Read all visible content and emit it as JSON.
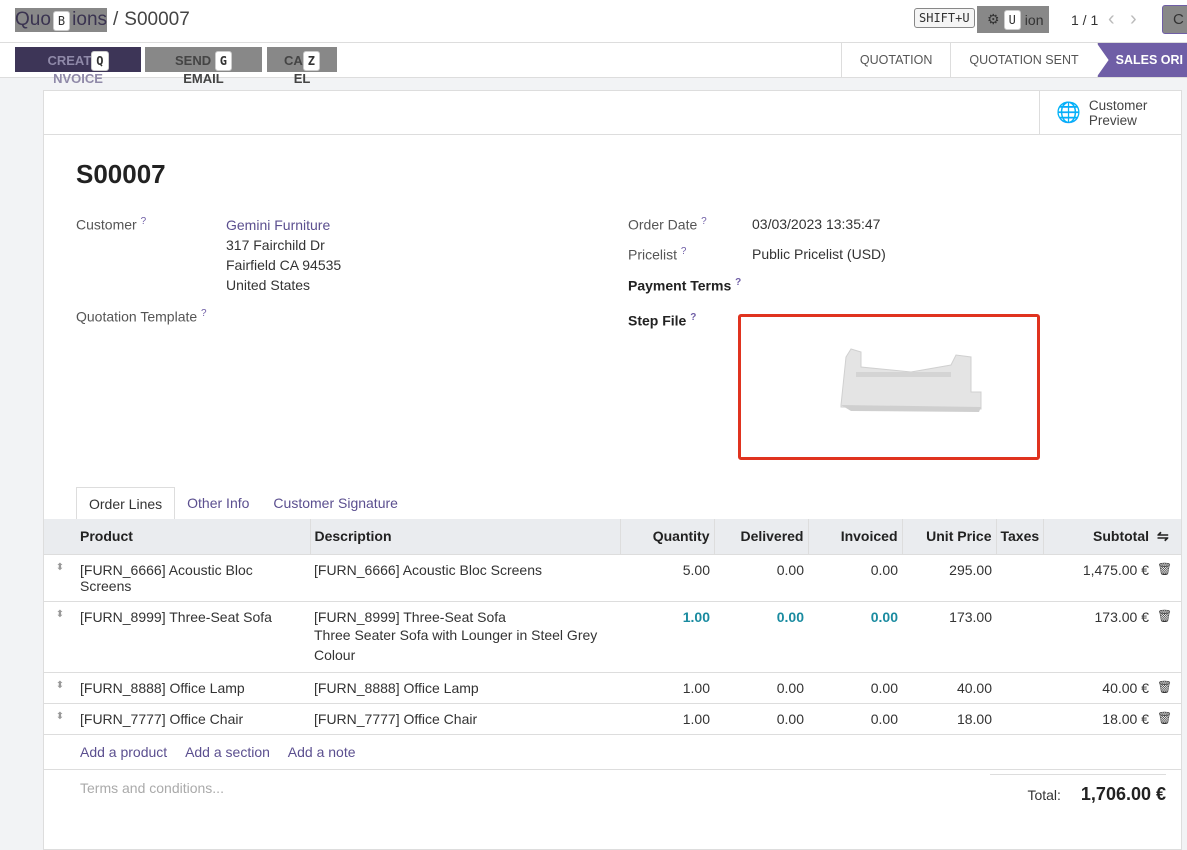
{
  "breadcrumb": {
    "parent_visible": "Quo",
    "parent_tail": "ions",
    "parent_hotkey": "B",
    "separator": "/",
    "current": "S00007"
  },
  "topbar": {
    "shift_hotkey": "SHIFT+U",
    "action_hotkey": "U",
    "action_tail": "ion",
    "pager": "1 / 1",
    "prev": "‹",
    "next": "›",
    "create_partial": "C"
  },
  "actions": {
    "create_invoice": {
      "left": "CREAT",
      "hotkey": "Q",
      "right": "NVOICE"
    },
    "send_email": {
      "left": "SEND",
      "hotkey": "G",
      "right": "EMAIL"
    },
    "cancel": {
      "left": "CA",
      "hotkey": "Z",
      "right": "EL"
    }
  },
  "status": [
    "QUOTATION",
    "QUOTATION SENT",
    "SALES ORI"
  ],
  "accent": "#6f5ea6",
  "preview": {
    "label1": "Customer",
    "label2": "Preview"
  },
  "order": {
    "name": "S00007",
    "customer_label": "Customer",
    "customer_name": "Gemini Furniture",
    "addr1": "317 Fairchild Dr",
    "addr2": "Fairfield CA 94535",
    "addr3": "United States",
    "template_label": "Quotation Template",
    "date_label": "Order Date",
    "date": "03/03/2023 13:35:47",
    "pricelist_label": "Pricelist",
    "pricelist": "Public Pricelist (USD)",
    "payment_label": "Payment Terms",
    "step_label": "Step File",
    "help": "?"
  },
  "tabs": [
    "Order Lines",
    "Other Info",
    "Customer Signature"
  ],
  "columns": [
    "Product",
    "Description",
    "Quantity",
    "Delivered",
    "Invoiced",
    "Unit Price",
    "Taxes",
    "Subtotal"
  ],
  "lines": [
    {
      "product": "[FURN_6666] Acoustic Bloc Screens",
      "desc": "[FURN_6666] Acoustic Bloc Screens",
      "desc2": "",
      "qty": "5.00",
      "del": "0.00",
      "inv": "0.00",
      "price": "295.00",
      "sub": "1,475.00 €"
    },
    {
      "product": "[FURN_8999] Three-Seat Sofa",
      "desc": "[FURN_8999] Three-Seat Sofa",
      "desc2": "Three Seater Sofa with Lounger in Steel Grey Colour",
      "qty": "1.00",
      "del": "0.00",
      "inv": "0.00",
      "price": "173.00",
      "sub": "173.00 €"
    },
    {
      "product": "[FURN_8888] Office Lamp",
      "desc": "[FURN_8888] Office Lamp",
      "desc2": "",
      "qty": "1.00",
      "del": "0.00",
      "inv": "0.00",
      "price": "40.00",
      "sub": "40.00 €"
    },
    {
      "product": "[FURN_7777] Office Chair",
      "desc": "[FURN_7777] Office Chair",
      "desc2": "",
      "qty": "1.00",
      "del": "0.00",
      "inv": "0.00",
      "price": "18.00",
      "sub": "18.00 €"
    }
  ],
  "add": {
    "product": "Add a product",
    "section": "Add a section",
    "note": "Add a note"
  },
  "terms_placeholder": "Terms and conditions...",
  "total": {
    "label": "Total:",
    "value": "1,706.00 €"
  }
}
